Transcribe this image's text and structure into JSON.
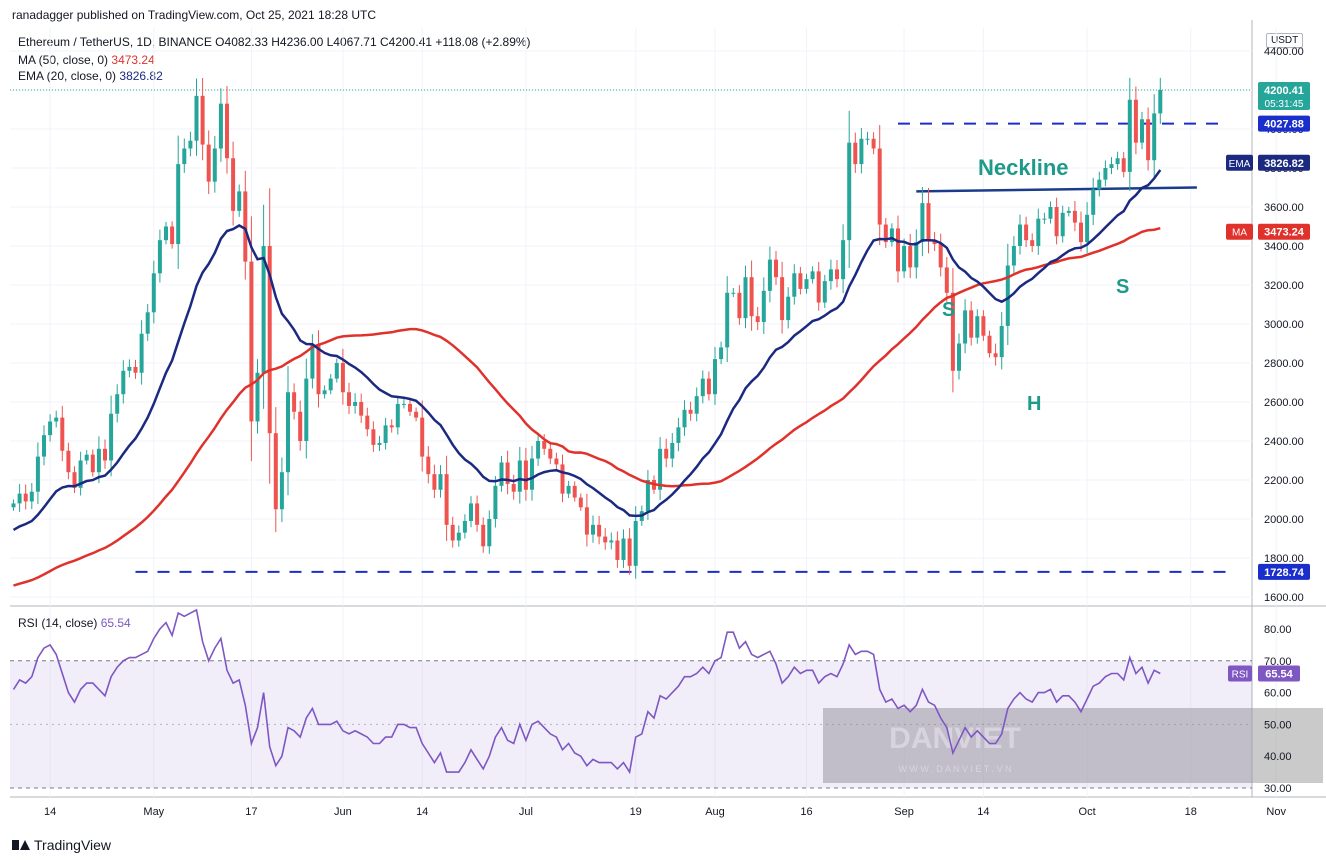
{
  "header": {
    "publisher": "ranadagger published on TradingView.com, Oct 25, 2021 18:28 UTC",
    "symbol_line": "Ethereum / TetherUS, 1D, BINANCE  O4082.33  H4236.00  L4067.71  C4200.41  +118.08 (+2.89%)",
    "ma_label": "MA (50, close, 0)",
    "ma_value": "3473.24",
    "ema_label": "EMA (20, close, 0)",
    "ema_value": "3826.82",
    "rsi_label": "RSI (14, close)",
    "rsi_value": "65.54",
    "currency": "USDT"
  },
  "footer": {
    "brand": "TradingView"
  },
  "watermark": "DANVIET",
  "watermark_sub": "W W W . D A N V I E T . V N",
  "colors": {
    "up": "#26a69a",
    "down": "#ef5350",
    "ema": "#1b2a80",
    "ma": "#e0312b",
    "rsi": "#7e57c2",
    "annot": "#1e9a8a",
    "levels": "#1a2ecc"
  },
  "chart_data": [
    {
      "type": "candlestick",
      "title": "Ethereum / TetherUS, 1D, BINANCE",
      "y_ticks": [
        "4400.00",
        "4200.00",
        "4000.00",
        "3800.00",
        "3600.00",
        "3400.00",
        "3200.00",
        "3000.00",
        "2800.00",
        "2600.00",
        "2400.00",
        "2200.00",
        "2000.00",
        "1800.00",
        "1600.00"
      ],
      "ylim": [
        1550,
        4450
      ],
      "x_ticks": [
        "14",
        "May",
        "17",
        "Jun",
        "14",
        "Jul",
        "19",
        "Aug",
        "16",
        "Sep",
        "14",
        "Oct",
        "18",
        "Nov"
      ],
      "price_labels": {
        "last": "4200.41",
        "countdown": "05:31:45",
        "resistance": "4027.88",
        "ema": "3826.82",
        "ema_tag": "EMA",
        "ma": "3473.24",
        "ma_tag": "MA",
        "support": "1728.74"
      },
      "levels": {
        "resistance": 4027.88,
        "support": 1728.74
      },
      "neckline": {
        "from": [
          "Sep 03",
          3680
        ],
        "to": [
          "Oct 19",
          3700
        ]
      },
      "annotations": {
        "neckline": "Neckline",
        "left_shoulder": "S",
        "head": "H",
        "right_shoulder": "S"
      },
      "start_date": "2021-04-08",
      "closes": [
        2080,
        2130,
        2090,
        2140,
        2320,
        2430,
        2500,
        2520,
        2350,
        2240,
        2160,
        2300,
        2330,
        2240,
        2360,
        2300,
        2540,
        2640,
        2760,
        2780,
        2750,
        2950,
        3060,
        3260,
        3430,
        3500,
        3410,
        3820,
        3900,
        3940,
        4170,
        3920,
        3730,
        3900,
        4130,
        3850,
        3580,
        3680,
        3320,
        2500,
        2750,
        3400,
        2440,
        2050,
        2240,
        2650,
        2550,
        2400,
        2720,
        2890,
        2640,
        2660,
        2720,
        2800,
        2650,
        2580,
        2600,
        2530,
        2460,
        2380,
        2390,
        2480,
        2470,
        2590,
        2590,
        2550,
        2520,
        2320,
        2230,
        2150,
        2230,
        1970,
        1890,
        1930,
        1990,
        2080,
        1970,
        1860,
        2000,
        2170,
        2290,
        2180,
        2140,
        2300,
        2150,
        2310,
        2400,
        2360,
        2310,
        2280,
        2130,
        2170,
        2110,
        2060,
        1920,
        1970,
        1910,
        1880,
        1890,
        1790,
        1900,
        1760,
        1990,
        2040,
        2200,
        2150,
        2360,
        2310,
        2390,
        2470,
        2560,
        2540,
        2630,
        2720,
        2640,
        2820,
        2880,
        3160,
        3160,
        3030,
        3240,
        3040,
        3010,
        3170,
        3330,
        3240,
        3020,
        3140,
        3260,
        3180,
        3230,
        3270,
        3110,
        3220,
        3280,
        3230,
        3430,
        3930,
        3820,
        3950,
        3950,
        3900,
        3510,
        3420,
        3490,
        3270,
        3400,
        3290,
        3420,
        3620,
        3430,
        3410,
        3290,
        3160,
        2760,
        2900,
        3070,
        2930,
        3040,
        2940,
        2850,
        2830,
        2990,
        3300,
        3400,
        3510,
        3430,
        3400,
        3540,
        3540,
        3600,
        3450,
        3570,
        3580,
        3520,
        3420,
        3560,
        3690,
        3740,
        3800,
        3820,
        3850,
        3780,
        4150,
        3930,
        4050,
        3840,
        4080,
        4200
      ],
      "moving_averages": [
        {
          "name": "EMA (20, close, 0)",
          "period": 20,
          "kind": "ema"
        },
        {
          "name": "MA (50, close, 0)",
          "period": 50,
          "kind": "sma"
        }
      ]
    },
    {
      "type": "line",
      "title": "RSI (14, close)",
      "y_ticks": [
        "80.00",
        "70.00",
        "60.00",
        "50.00",
        "40.00",
        "30.00"
      ],
      "ylim": [
        28,
        86
      ],
      "band": [
        30,
        70
      ],
      "values": [
        61,
        64,
        63,
        65,
        71,
        74,
        75,
        72,
        66,
        60,
        57,
        61,
        63,
        63,
        61,
        59,
        65,
        68,
        70,
        71,
        71,
        72,
        73,
        77,
        80,
        82,
        78,
        85,
        84,
        85,
        86,
        76,
        70,
        74,
        77,
        67,
        63,
        64,
        56,
        44,
        49,
        60,
        43,
        37,
        40,
        49,
        48,
        46,
        52,
        55,
        50,
        50,
        50,
        51,
        48,
        47,
        48,
        47,
        46,
        44,
        44,
        46,
        46,
        50,
        50,
        49,
        49,
        44,
        41,
        38,
        41,
        35,
        35,
        35,
        38,
        42,
        39,
        36,
        40,
        46,
        49,
        45,
        44,
        50,
        45,
        50,
        51,
        49,
        47,
        46,
        42,
        44,
        41,
        40,
        37,
        39,
        38,
        38,
        38,
        36,
        38,
        35,
        46,
        47,
        54,
        52,
        59,
        58,
        60,
        62,
        65,
        65,
        66,
        68,
        66,
        70,
        71,
        79,
        79,
        74,
        76,
        72,
        71,
        72,
        73,
        69,
        63,
        65,
        68,
        66,
        67,
        67,
        63,
        65,
        66,
        65,
        69,
        75,
        72,
        73,
        73,
        72,
        61,
        57,
        58,
        55,
        56,
        54,
        56,
        61,
        57,
        56,
        52,
        49,
        41,
        45,
        49,
        46,
        48,
        46,
        44,
        44,
        47,
        55,
        58,
        60,
        58,
        57,
        60,
        60,
        61,
        57,
        59,
        59,
        57,
        54,
        58,
        62,
        63,
        65,
        66,
        66,
        64,
        71,
        66,
        68,
        63,
        67,
        66
      ]
    }
  ]
}
